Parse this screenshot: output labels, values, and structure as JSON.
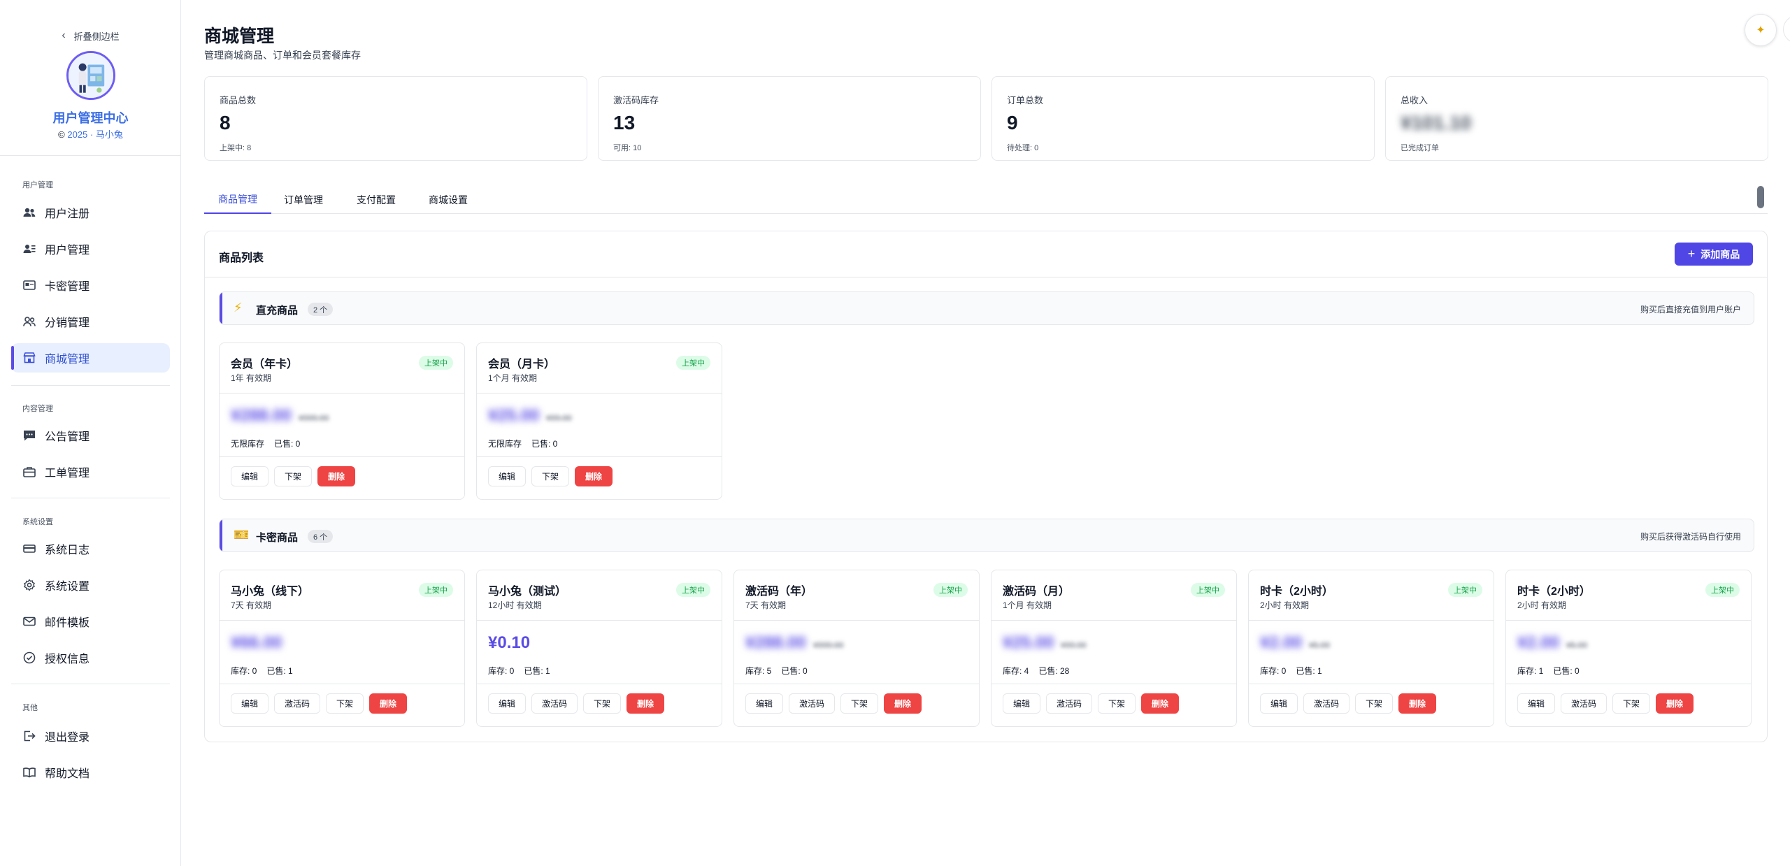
{
  "sidebar": {
    "collapse_label": "折叠侧边栏",
    "brand_title": "用户管理中心",
    "brand_sub": "2025 · 马小兔",
    "sections": [
      {
        "label": "用户管理",
        "items": [
          {
            "label": "用户注册",
            "icon": "users-icon"
          },
          {
            "label": "用户管理",
            "icon": "user-card-icon"
          },
          {
            "label": "卡密管理",
            "icon": "card-icon"
          },
          {
            "label": "分销管理",
            "icon": "people-icon"
          },
          {
            "label": "商城管理",
            "icon": "store-icon",
            "active": true
          }
        ]
      },
      {
        "label": "内容管理",
        "items": [
          {
            "label": "公告管理",
            "icon": "message-icon"
          },
          {
            "label": "工单管理",
            "icon": "briefcase-icon"
          }
        ]
      },
      {
        "label": "系统设置",
        "items": [
          {
            "label": "系统日志",
            "icon": "log-icon"
          },
          {
            "label": "系统设置",
            "icon": "gear-icon"
          },
          {
            "label": "邮件模板",
            "icon": "mail-icon"
          },
          {
            "label": "授权信息",
            "icon": "check-circle-icon"
          }
        ]
      },
      {
        "label": "其他",
        "items": [
          {
            "label": "退出登录",
            "icon": "logout-icon"
          },
          {
            "label": "帮助文档",
            "icon": "book-icon"
          }
        ]
      }
    ]
  },
  "header": {
    "title": "商城管理",
    "subtitle": "管理商城商品、订单和会员套餐库存"
  },
  "stats": [
    {
      "label": "商品总数",
      "value": "8",
      "note": "上架中: 8",
      "blurred": false
    },
    {
      "label": "激活码库存",
      "value": "13",
      "note": "可用: 10",
      "blurred": false
    },
    {
      "label": "订单总数",
      "value": "9",
      "note": "待处理: 0",
      "blurred": false
    },
    {
      "label": "总收入",
      "value": "¥101.10",
      "note": "已完成订单",
      "blurred": true
    }
  ],
  "tabs": [
    {
      "label": "商品管理",
      "active": true
    },
    {
      "label": "订单管理"
    },
    {
      "label": "支付配置"
    },
    {
      "label": "商城设置"
    }
  ],
  "panel": {
    "title": "商品列表",
    "add_button": "添加商品"
  },
  "groups": {
    "direct": {
      "icon": "⚡",
      "name": "直充商品",
      "count": "2 个",
      "desc": "购买后直接充值到用户账户",
      "products": [
        {
          "name": "会员（年卡）",
          "validity": "1年 有效期",
          "badge": "上架中",
          "price": "¥288.00",
          "orig": "¥999.00",
          "stock": "无限库存",
          "sold": "已售: 0",
          "blurred": true,
          "actions": [
            "编辑",
            "下架",
            "删除"
          ]
        },
        {
          "name": "会员（月卡）",
          "validity": "1个月 有效期",
          "badge": "上架中",
          "price": "¥25.00",
          "orig": "¥99.00",
          "stock": "无限库存",
          "sold": "已售: 0",
          "blurred": true,
          "actions": [
            "编辑",
            "下架",
            "删除"
          ]
        }
      ]
    },
    "card": {
      "icon": "🎫",
      "name": "卡密商品",
      "count": "6 个",
      "desc": "购买后获得激活码自行使用",
      "products": [
        {
          "name": "马小兔（线下）",
          "validity": "7天 有效期",
          "badge": "上架中",
          "price": "¥66.00",
          "orig": "",
          "stock": "库存: 0",
          "sold": "已售: 1",
          "blurred": true,
          "actions": [
            "编辑",
            "激活码",
            "下架",
            "删除"
          ]
        },
        {
          "name": "马小兔（测试）",
          "validity": "12小时 有效期",
          "badge": "上架中",
          "price": "¥0.10",
          "orig": "",
          "stock": "库存: 0",
          "sold": "已售: 1",
          "blurred": false,
          "actions": [
            "编辑",
            "激活码",
            "下架",
            "删除"
          ]
        },
        {
          "name": "激活码（年）",
          "validity": "7天 有效期",
          "badge": "上架中",
          "price": "¥288.00",
          "orig": "¥999.00",
          "stock": "库存: 5",
          "sold": "已售: 0",
          "blurred": true,
          "actions": [
            "编辑",
            "激活码",
            "下架",
            "删除"
          ]
        },
        {
          "name": "激活码（月）",
          "validity": "1个月 有效期",
          "badge": "上架中",
          "price": "¥25.00",
          "orig": "¥99.00",
          "stock": "库存: 4",
          "sold": "已售: 28",
          "blurred": true,
          "actions": [
            "编辑",
            "激活码",
            "下架",
            "删除"
          ]
        },
        {
          "name": "时卡（2小时）",
          "validity": "2小时 有效期",
          "badge": "上架中",
          "price": "¥2.00",
          "orig": "¥5.00",
          "stock": "库存: 0",
          "sold": "已售: 1",
          "blurred": true,
          "actions": [
            "编辑",
            "激活码",
            "下架",
            "删除"
          ]
        },
        {
          "name": "时卡（2小时）",
          "validity": "2小时 有效期",
          "badge": "上架中",
          "price": "¥2.00",
          "orig": "¥5.00",
          "stock": "库存: 1",
          "sold": "已售: 0",
          "blurred": true,
          "actions": [
            "编辑",
            "激活码",
            "下架",
            "删除"
          ]
        }
      ]
    }
  }
}
